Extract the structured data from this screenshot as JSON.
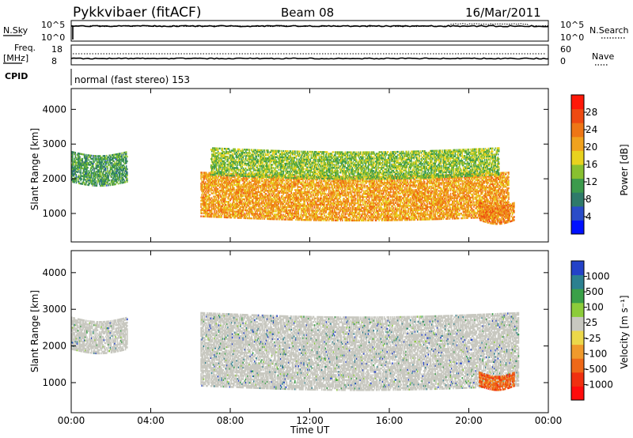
{
  "header": {
    "radar": "Pykkvibaer (fitACF)",
    "beam": "Beam 08",
    "date": "16/Mar/2011"
  },
  "top_panels": {
    "nsky": {
      "label": "N.Sky",
      "ticks": [
        "10^5",
        "10^0"
      ]
    },
    "nsearch": {
      "label": "N.Search",
      "ticks": [
        "10^5",
        "10^0"
      ]
    },
    "freq": {
      "label_line1": "Freq.",
      "label_line2": "[MHz]",
      "ticks": [
        "18",
        "8"
      ]
    },
    "nave": {
      "label": "Nave",
      "ticks": [
        "60",
        "0"
      ]
    },
    "cpid": {
      "label": "CPID",
      "mode_text": "normal (fast stereo) 153"
    }
  },
  "chart_data": [
    {
      "type": "heatmap",
      "title": "",
      "xlabel": "Time UT",
      "ylabel": "Slant Range [km]",
      "xlim": [
        0,
        24
      ],
      "ylim": [
        180,
        4600
      ],
      "x_ticks": [
        "00:00",
        "04:00",
        "08:00",
        "12:00",
        "16:00",
        "20:00",
        "00:00"
      ],
      "y_ticks": [
        "1000",
        "2000",
        "3000",
        "4000"
      ],
      "colorbar": {
        "label": "Power [dB]",
        "range": [
          0,
          32
        ],
        "ticks": [
          "4",
          "8",
          "12",
          "16",
          "20",
          "24",
          "28"
        ],
        "colors": [
          "#0010ff",
          "#2a4cc8",
          "#2f7a6a",
          "#3c9a4c",
          "#88c030",
          "#e8d21e",
          "#f0a21e",
          "#ee7616",
          "#ee4a12",
          "#ff1808"
        ]
      },
      "regions": [
        {
          "name": "early-band",
          "t_start": 0.0,
          "t_end": 2.8,
          "r_start": 1900,
          "r_end": 2800,
          "level": 10
        },
        {
          "name": "main-band",
          "t_start": 6.5,
          "t_end": 22.0,
          "r_start": 900,
          "r_end": 2200,
          "level": 22
        },
        {
          "name": "upper-band",
          "t_start": 7.0,
          "t_end": 21.5,
          "r_start": 2100,
          "r_end": 2900,
          "level": 14
        },
        {
          "name": "late-patch",
          "t_start": 20.5,
          "t_end": 22.3,
          "r_start": 800,
          "r_end": 1300,
          "level": 24
        }
      ]
    },
    {
      "type": "heatmap",
      "title": "",
      "xlabel": "Time UT",
      "ylabel": "Slant Range [km]",
      "xlim": [
        0,
        24
      ],
      "ylim": [
        180,
        4600
      ],
      "x_ticks": [
        "00:00",
        "04:00",
        "08:00",
        "12:00",
        "16:00",
        "20:00",
        "00:00"
      ],
      "y_ticks": [
        "1000",
        "2000",
        "3000",
        "4000"
      ],
      "colorbar": {
        "label": "Velocity [m s^-1]",
        "ticks": [
          "1000",
          "500",
          "100",
          "25",
          "-25",
          "-100",
          "-500",
          "-1000"
        ],
        "colors": [
          "#2442c8",
          "#2c8090",
          "#3aa048",
          "#8ccc3a",
          "#c8c8c0",
          "#ecd84a",
          "#f09a2c",
          "#ee6818",
          "#f03010",
          "#ff0c0c"
        ]
      },
      "regions": [
        {
          "name": "early-band",
          "t_start": 0.0,
          "t_end": 2.8,
          "r_start": 1900,
          "r_end": 2800,
          "level": "ground"
        },
        {
          "name": "main-band",
          "t_start": 6.5,
          "t_end": 22.5,
          "r_start": 900,
          "r_end": 2900,
          "level": "ground"
        },
        {
          "name": "late-patch",
          "t_start": 20.5,
          "t_end": 22.3,
          "r_start": 900,
          "r_end": 1300,
          "level": -500
        }
      ]
    }
  ]
}
